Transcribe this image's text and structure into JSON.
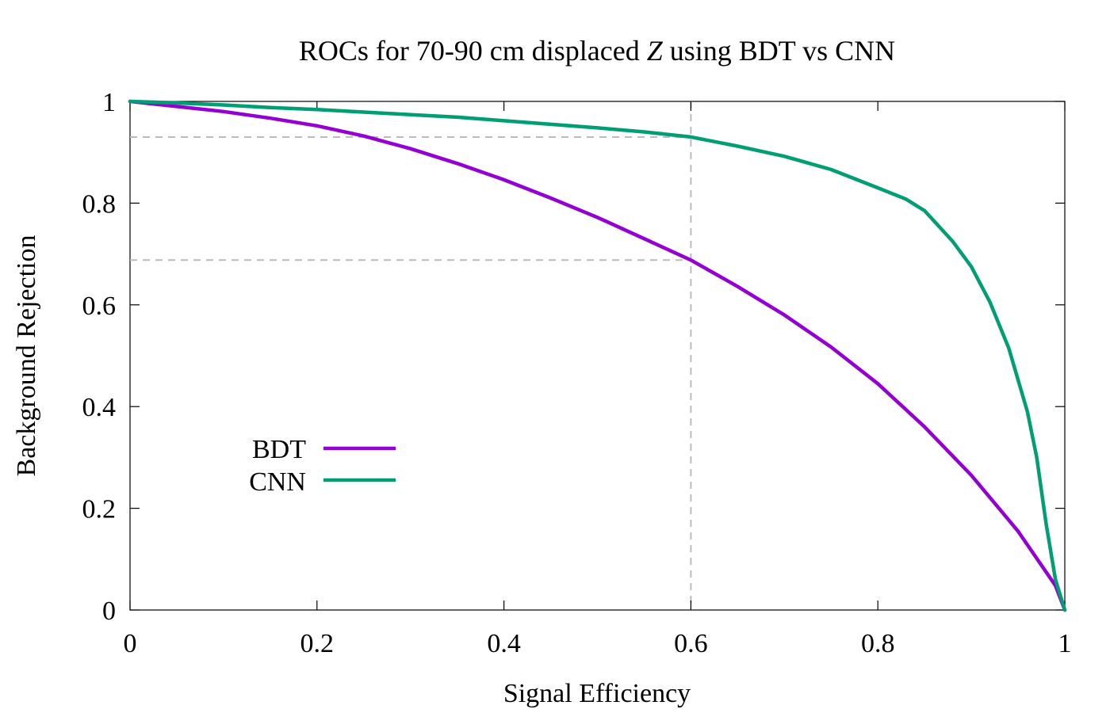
{
  "chart_data": {
    "type": "line",
    "title_parts": {
      "before": "ROCs for 70-90 cm displaced ",
      "italic": "Z",
      "after": " using BDT vs CNN"
    },
    "xlabel": "Signal Efficiency",
    "ylabel": "Background Rejection",
    "xlim": [
      0,
      1
    ],
    "ylim": [
      0,
      1
    ],
    "xticks": [
      0,
      0.2,
      0.4,
      0.6,
      0.8,
      1
    ],
    "yticks": [
      0,
      0.2,
      0.4,
      0.6,
      0.8,
      1
    ],
    "xtick_labels": [
      "0",
      "0.2",
      "0.4",
      "0.6",
      "0.8",
      "1"
    ],
    "ytick_labels": [
      "0",
      "0.2",
      "0.4",
      "0.6",
      "0.8",
      "1"
    ],
    "legend_position": "lower-left",
    "reference_lines": {
      "vertical_x": 0.6,
      "horizontal_y": [
        0.93,
        0.688
      ]
    },
    "series": [
      {
        "name": "BDT",
        "color": "#9400d3",
        "x": [
          0,
          0.05,
          0.1,
          0.15,
          0.2,
          0.25,
          0.3,
          0.35,
          0.4,
          0.45,
          0.5,
          0.55,
          0.6,
          0.65,
          0.7,
          0.75,
          0.8,
          0.85,
          0.9,
          0.95,
          0.99,
          1.0
        ],
        "y": [
          1.0,
          0.99,
          0.98,
          0.967,
          0.952,
          0.932,
          0.907,
          0.878,
          0.846,
          0.81,
          0.772,
          0.73,
          0.688,
          0.636,
          0.58,
          0.517,
          0.445,
          0.36,
          0.265,
          0.155,
          0.048,
          0.0
        ]
      },
      {
        "name": "CNN",
        "color": "#009e73",
        "x": [
          0,
          0.05,
          0.1,
          0.15,
          0.2,
          0.25,
          0.3,
          0.35,
          0.4,
          0.45,
          0.5,
          0.55,
          0.6,
          0.65,
          0.7,
          0.75,
          0.8,
          0.83,
          0.85,
          0.88,
          0.9,
          0.92,
          0.94,
          0.96,
          0.97,
          0.98,
          0.99,
          1.0
        ],
        "y": [
          1.0,
          0.997,
          0.993,
          0.988,
          0.984,
          0.979,
          0.974,
          0.969,
          0.962,
          0.955,
          0.948,
          0.94,
          0.93,
          0.912,
          0.892,
          0.866,
          0.83,
          0.808,
          0.785,
          0.725,
          0.675,
          0.605,
          0.515,
          0.39,
          0.3,
          0.17,
          0.06,
          0.0
        ]
      }
    ]
  }
}
